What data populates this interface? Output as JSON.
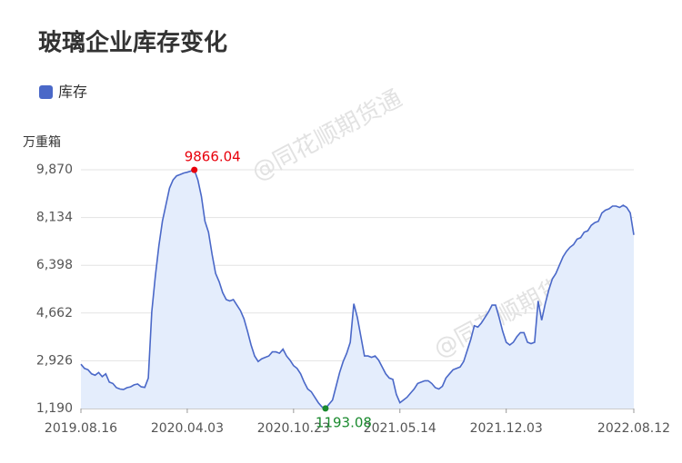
{
  "chart_data": {
    "type": "area",
    "title": "玻璃企业库存变化",
    "y_unit": "万重箱",
    "watermark": "@同花顺期货通",
    "grid": true,
    "legend": "top-left",
    "fill_color": "#e4edfc",
    "max_color": "#e8000b",
    "min_color": "#1a8a2e",
    "ylim": [
      1190,
      9870
    ],
    "yticks": [
      {
        "value": 1190,
        "label": "1,190"
      },
      {
        "value": 2926,
        "label": "2,926"
      },
      {
        "value": 4662,
        "label": "4,662"
      },
      {
        "value": 6398,
        "label": "6,398"
      },
      {
        "value": 8134,
        "label": "8,134"
      },
      {
        "value": 9870,
        "label": "9,870"
      }
    ],
    "categories": [
      "2019.08.16",
      null,
      null,
      null,
      null,
      null,
      null,
      null,
      null,
      null,
      null,
      null,
      null,
      null,
      null,
      null,
      null,
      null,
      null,
      null,
      null,
      null,
      null,
      null,
      null,
      null,
      null,
      null,
      null,
      null,
      "2020.04.03",
      null,
      null,
      null,
      null,
      null,
      null,
      null,
      null,
      null,
      null,
      null,
      null,
      null,
      null,
      null,
      null,
      null,
      null,
      null,
      null,
      null,
      null,
      null,
      null,
      null,
      null,
      null,
      null,
      null,
      "2020.10.23",
      null,
      null,
      null,
      null,
      null,
      null,
      null,
      null,
      null,
      null,
      null,
      null,
      null,
      null,
      null,
      null,
      null,
      null,
      null,
      null,
      null,
      null,
      null,
      null,
      null,
      null,
      null,
      null,
      null,
      "2021.05.14",
      null,
      null,
      null,
      null,
      null,
      null,
      null,
      null,
      null,
      null,
      null,
      null,
      null,
      null,
      null,
      null,
      null,
      null,
      null,
      null,
      null,
      null,
      null,
      null,
      null,
      null,
      null,
      null,
      null,
      "2021.12.03",
      null,
      null,
      null,
      null,
      null,
      null,
      null,
      null,
      null,
      null,
      null,
      null,
      null,
      null,
      null,
      null,
      null,
      null,
      null,
      null,
      null,
      null,
      null,
      null,
      null,
      null,
      null,
      null,
      null,
      null,
      null,
      null,
      null,
      null,
      null,
      "2022.08.12"
    ],
    "series": [
      {
        "name": "库存",
        "color": "#4a68c8",
        "values": [
          2800,
          2650,
          2600,
          2450,
          2400,
          2500,
          2350,
          2450,
          2150,
          2100,
          1950,
          1900,
          1880,
          1950,
          1980,
          2050,
          2080,
          1980,
          1960,
          2300,
          4700,
          6000,
          7100,
          8000,
          8600,
          9200,
          9500,
          9650,
          9700,
          9750,
          9780,
          9820,
          9866.04,
          9500,
          8900,
          8000,
          7600,
          6800,
          6100,
          5800,
          5400,
          5150,
          5100,
          5150,
          4950,
          4750,
          4450,
          4000,
          3500,
          3100,
          2900,
          3000,
          3050,
          3100,
          3250,
          3250,
          3200,
          3350,
          3100,
          2950,
          2750,
          2650,
          2450,
          2150,
          1900,
          1800,
          1600,
          1400,
          1250,
          1193.08,
          1350,
          1500,
          2000,
          2500,
          2900,
          3200,
          3600,
          5000,
          4500,
          3800,
          3100,
          3100,
          3050,
          3100,
          2950,
          2700,
          2450,
          2300,
          2250,
          1700,
          1400,
          1500,
          1600,
          1750,
          1900,
          2100,
          2150,
          2200,
          2200,
          2100,
          1950,
          1900,
          2000,
          2300,
          2450,
          2600,
          2650,
          2700,
          2900,
          3300,
          3700,
          4200,
          4150,
          4300,
          4500,
          4700,
          4950,
          4950,
          4500,
          4000,
          3600,
          3500,
          3600,
          3800,
          3950,
          3950,
          3600,
          3550,
          3600,
          5100,
          4400,
          5000,
          5500,
          5900,
          6100,
          6400,
          6700,
          6900,
          7050,
          7150,
          7350,
          7400,
          7600,
          7650,
          7850,
          7950,
          8000,
          8300,
          8400,
          8450,
          8550,
          8550,
          8500,
          8580,
          8500,
          8300,
          7500
        ]
      }
    ]
  }
}
